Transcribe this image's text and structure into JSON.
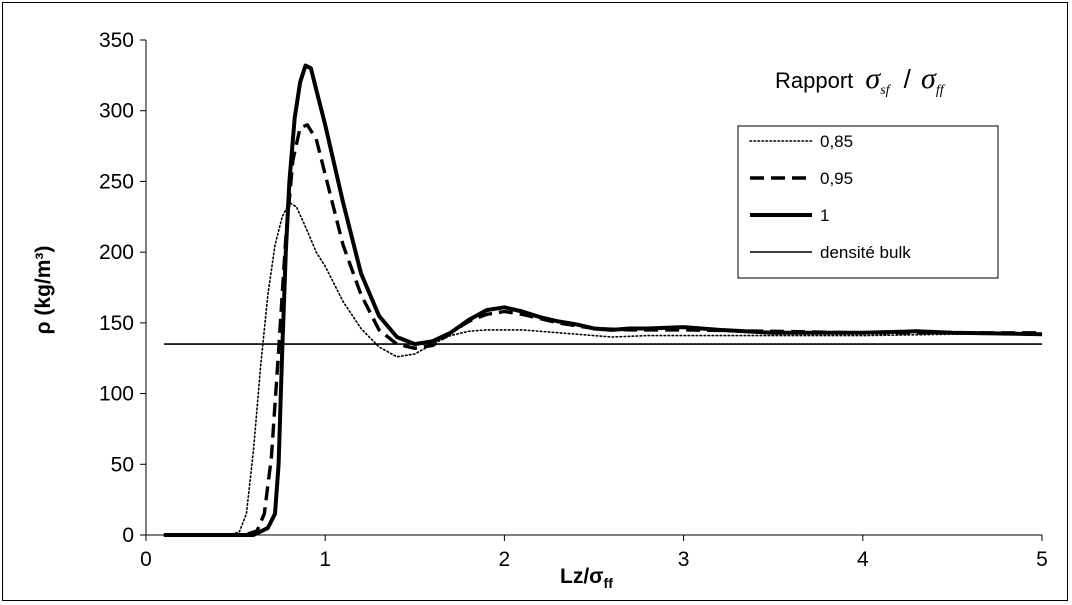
{
  "chart_data": {
    "type": "line",
    "xlabel": "Lz/σff",
    "xlabel_main": "Lz/σ",
    "xlabel_sub": "ff",
    "ylabel": "ρ (kg/m³)",
    "xlim": [
      0,
      5
    ],
    "ylim": [
      0,
      350
    ],
    "x_ticks": [
      0,
      1,
      2,
      3,
      4,
      5
    ],
    "x_tick_labels": [
      "0",
      "1",
      "2",
      "3",
      "4",
      "5"
    ],
    "y_ticks": [
      0,
      50,
      100,
      150,
      200,
      250,
      300,
      350
    ],
    "y_tick_labels": [
      "0",
      "50",
      "100",
      "150",
      "200",
      "250",
      "300",
      "350"
    ],
    "grid": false,
    "legend": {
      "title": "Rapport σsf / σff",
      "title_word": "Rapport",
      "title_sym1": "σ",
      "title_sub1": "sf",
      "title_slash": "/",
      "title_sym2": "σ",
      "title_sub2": "ff",
      "placement": "top-right"
    },
    "series": [
      {
        "name": "0,85",
        "style": "dotted",
        "x": [
          0.1,
          0.45,
          0.52,
          0.56,
          0.6,
          0.64,
          0.68,
          0.72,
          0.76,
          0.8,
          0.84,
          0.9,
          0.95,
          1.0,
          1.1,
          1.2,
          1.3,
          1.4,
          1.5,
          1.6,
          1.7,
          1.8,
          1.9,
          2.0,
          2.1,
          2.2,
          2.4,
          2.6,
          2.8,
          3.0,
          3.5,
          4.0,
          4.5,
          5.0
        ],
        "y": [
          0,
          0,
          2,
          15,
          60,
          120,
          170,
          205,
          225,
          235,
          232,
          215,
          200,
          190,
          165,
          146,
          133,
          126,
          128,
          135,
          141,
          144,
          145,
          145,
          145,
          144,
          142,
          140,
          141,
          141,
          141,
          141,
          142,
          142
        ]
      },
      {
        "name": "0,95",
        "style": "dashed",
        "x": [
          0.1,
          0.55,
          0.62,
          0.66,
          0.7,
          0.74,
          0.78,
          0.82,
          0.86,
          0.9,
          0.95,
          1.0,
          1.1,
          1.2,
          1.3,
          1.4,
          1.5,
          1.6,
          1.7,
          1.8,
          1.9,
          2.0,
          2.1,
          2.2,
          2.3,
          2.5,
          2.7,
          3.0,
          3.5,
          4.0,
          4.5,
          5.0
        ],
        "y": [
          0,
          0,
          3,
          15,
          55,
          130,
          210,
          265,
          288,
          290,
          280,
          255,
          205,
          170,
          145,
          135,
          132,
          134,
          143,
          151,
          156,
          158,
          156,
          153,
          150,
          146,
          145,
          145,
          144,
          143,
          143,
          143
        ]
      },
      {
        "name": "1",
        "style": "solid-thick",
        "x": [
          0.1,
          0.6,
          0.68,
          0.72,
          0.74,
          0.76,
          0.78,
          0.8,
          0.83,
          0.86,
          0.89,
          0.92,
          0.95,
          1.0,
          1.1,
          1.2,
          1.3,
          1.4,
          1.5,
          1.6,
          1.7,
          1.8,
          1.9,
          2.0,
          2.1,
          2.2,
          2.3,
          2.4,
          2.5,
          2.6,
          2.7,
          2.8,
          3.0,
          3.2,
          3.5,
          4.0,
          4.3,
          4.5,
          5.0
        ],
        "y": [
          0,
          0,
          5,
          15,
          50,
          130,
          200,
          250,
          295,
          320,
          332,
          330,
          315,
          290,
          235,
          185,
          155,
          140,
          135,
          137,
          143,
          152,
          159,
          161,
          158,
          154,
          151,
          149,
          146,
          145,
          146,
          146,
          147,
          145,
          143,
          143,
          144,
          143,
          142
        ]
      },
      {
        "name": "densité bulk",
        "style": "solid-thin",
        "x": [
          0.1,
          5.0
        ],
        "y": [
          135,
          135
        ]
      }
    ]
  }
}
